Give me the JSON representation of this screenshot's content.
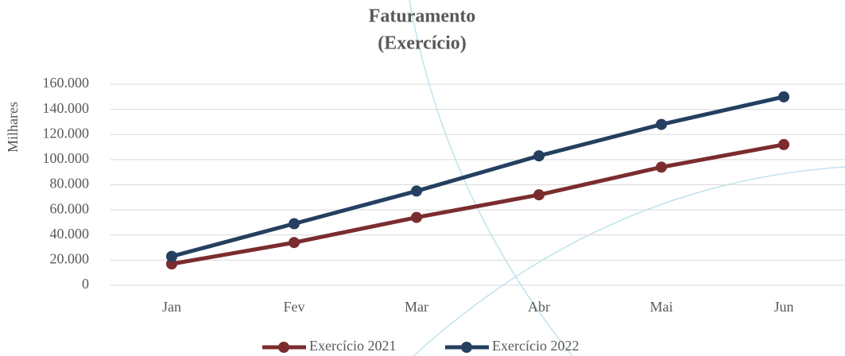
{
  "chart_data": {
    "type": "line",
    "title": [
      "Faturamento",
      "(Exercício)"
    ],
    "y_label": "Milhares",
    "categories": [
      "Jan",
      "Fev",
      "Mar",
      "Abr",
      "Mai",
      "Jun"
    ],
    "series": [
      {
        "name": "Exercício 2021",
        "color": "#7b2c2f",
        "values": [
          17000,
          34000,
          54000,
          72000,
          94000,
          112000
        ]
      },
      {
        "name": "Exercício 2022",
        "color": "#243f60",
        "values": [
          23000,
          49000,
          75000,
          103000,
          128000,
          150000
        ]
      }
    ],
    "ylim": [
      0,
      160000
    ],
    "yticks": [
      0,
      {
        "value": 20000,
        "label": "20.000"
      },
      {
        "value": 40000,
        "label": "40.000"
      },
      {
        "value": 60000,
        "label": "60.000"
      },
      {
        "value": 80000,
        "label": "80.000"
      },
      {
        "value": 100000,
        "label": "100.000"
      },
      {
        "value": 120000,
        "label": "120.000"
      },
      {
        "value": 140000,
        "label": "140.000"
      },
      {
        "value": 160000,
        "label": "160.000"
      }
    ],
    "grid": true,
    "legend": "bottom"
  }
}
